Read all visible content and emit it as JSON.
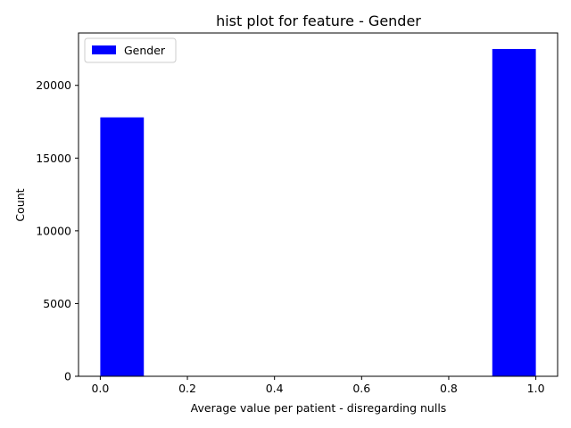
{
  "chart_data": {
    "type": "bar",
    "title": "hist plot for feature -  Gender",
    "xlabel": "Average value per patient - disregarding nulls",
    "ylabel": "Count",
    "xlim": [
      -0.05,
      1.05
    ],
    "ylim": [
      0,
      23600
    ],
    "x_ticks": [
      0.0,
      0.2,
      0.4,
      0.6,
      0.8,
      1.0
    ],
    "x_tick_labels": [
      "0.0",
      "0.2",
      "0.4",
      "0.6",
      "0.8",
      "1.0"
    ],
    "y_ticks": [
      0,
      5000,
      10000,
      15000,
      20000
    ],
    "y_tick_labels": [
      "0",
      "5000",
      "10000",
      "15000",
      "20000"
    ],
    "bins": [
      {
        "x0": 0.0,
        "x1": 0.1,
        "value": 17800
      },
      {
        "x0": 0.9,
        "x1": 1.0,
        "value": 22500
      }
    ],
    "bar_color": "#0000ff",
    "legend": {
      "placement": "upper-left",
      "entries": [
        {
          "label": "Gender",
          "color": "#0000ff"
        }
      ]
    },
    "grid": false
  }
}
